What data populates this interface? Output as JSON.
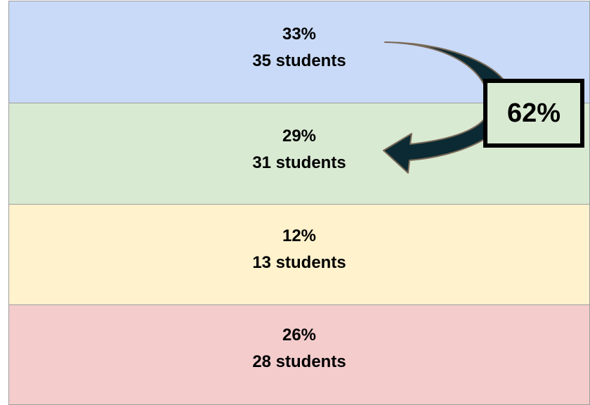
{
  "bands": [
    {
      "percent": "33%",
      "count": "35 students",
      "color": "#c9daf8"
    },
    {
      "percent": "29%",
      "count": "31 students",
      "color": "#d9ead3"
    },
    {
      "percent": "12%",
      "count": "13 students",
      "color": "#fff2cc"
    },
    {
      "percent": "26%",
      "count": "28 students",
      "color": "#f4cccc"
    }
  ],
  "callout": {
    "value": "62%"
  },
  "arrow": {
    "color": "#0b2a33",
    "icon": "curved-arrow-icon"
  }
}
